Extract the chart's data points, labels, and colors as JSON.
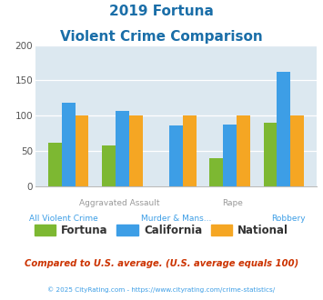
{
  "title_line1": "2019 Fortuna",
  "title_line2": "Violent Crime Comparison",
  "fortuna": [
    61,
    57,
    0,
    40,
    90
  ],
  "california": [
    118,
    107,
    86,
    87,
    162
  ],
  "national": [
    100,
    100,
    100,
    100,
    100
  ],
  "fortuna_color": "#7db832",
  "california_color": "#3d9ee6",
  "national_color": "#f5a623",
  "ylim": [
    0,
    200
  ],
  "yticks": [
    0,
    50,
    100,
    150,
    200
  ],
  "background_color": "#dce8f0",
  "title_color": "#1a6ea8",
  "xlabel_top": [
    "",
    "Aggravated Assault",
    "",
    "Rape",
    ""
  ],
  "xlabel_bottom": [
    "All Violent Crime",
    "",
    "Murder & Mans...",
    "",
    "Robbery"
  ],
  "xlabel_top_color": "#999999",
  "xlabel_bottom_color": "#3d9ee6",
  "footer_text": "Compared to U.S. average. (U.S. average equals 100)",
  "footer_color": "#cc3300",
  "credit_text": "© 2025 CityRating.com - https://www.cityrating.com/crime-statistics/",
  "credit_color": "#3d9ee6",
  "legend_labels": [
    "Fortuna",
    "California",
    "National"
  ],
  "bar_width": 0.25
}
